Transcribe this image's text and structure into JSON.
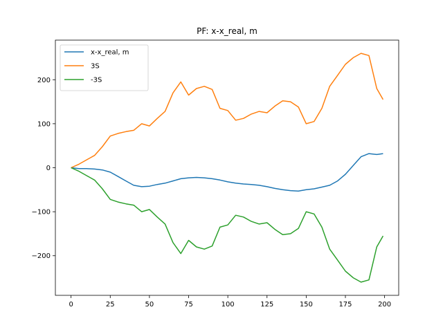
{
  "chart_data": {
    "type": "line",
    "title": "PF: x-x_real, m",
    "xlabel": "",
    "ylabel": "",
    "xlim": [
      -10,
      209
    ],
    "ylim": [
      -290,
      290
    ],
    "xticks": [
      0,
      25,
      50,
      75,
      100,
      125,
      150,
      175,
      200
    ],
    "yticks": [
      -200,
      -100,
      0,
      100,
      200
    ],
    "xtick_labels": [
      "0",
      "25",
      "50",
      "75",
      "100",
      "125",
      "150",
      "175",
      "200"
    ],
    "ytick_labels": [
      "−200",
      "−100",
      "0",
      "100",
      "200"
    ],
    "grid": false,
    "legend_position": "upper-left",
    "series": [
      {
        "name": "x-x_real, m",
        "color": "#1f77b4",
        "x": [
          0,
          5,
          10,
          15,
          20,
          25,
          30,
          35,
          40,
          45,
          50,
          55,
          60,
          65,
          70,
          75,
          80,
          85,
          90,
          95,
          100,
          105,
          110,
          115,
          120,
          125,
          130,
          135,
          140,
          145,
          150,
          155,
          160,
          165,
          170,
          175,
          180,
          185,
          190,
          195,
          199
        ],
        "y": [
          0,
          -2,
          -2,
          -3,
          -5,
          -10,
          -20,
          -30,
          -40,
          -43,
          -42,
          -38,
          -35,
          -30,
          -25,
          -23,
          -22,
          -23,
          -25,
          -28,
          -32,
          -35,
          -37,
          -38,
          -40,
          -43,
          -47,
          -50,
          -52,
          -53,
          -50,
          -48,
          -44,
          -40,
          -30,
          -15,
          5,
          25,
          32,
          30,
          32
        ]
      },
      {
        "name": "3S",
        "color": "#ff7f0e",
        "x": [
          0,
          5,
          10,
          15,
          20,
          25,
          30,
          35,
          40,
          45,
          50,
          55,
          60,
          65,
          70,
          75,
          80,
          85,
          90,
          95,
          100,
          105,
          110,
          115,
          120,
          125,
          130,
          135,
          140,
          145,
          150,
          155,
          160,
          165,
          170,
          175,
          180,
          185,
          190,
          195,
          199
        ],
        "y": [
          0,
          8,
          18,
          28,
          48,
          72,
          78,
          82,
          85,
          100,
          95,
          112,
          128,
          170,
          195,
          165,
          180,
          185,
          178,
          135,
          130,
          108,
          112,
          122,
          128,
          125,
          140,
          152,
          150,
          138,
          100,
          105,
          135,
          185,
          210,
          235,
          250,
          260,
          255,
          180,
          155
        ]
      },
      {
        "name": "-3S",
        "color": "#2ca02c",
        "x": [
          0,
          5,
          10,
          15,
          20,
          25,
          30,
          35,
          40,
          45,
          50,
          55,
          60,
          65,
          70,
          75,
          80,
          85,
          90,
          95,
          100,
          105,
          110,
          115,
          120,
          125,
          130,
          135,
          140,
          145,
          150,
          155,
          160,
          165,
          170,
          175,
          180,
          185,
          190,
          195,
          199
        ],
        "y": [
          0,
          -8,
          -18,
          -28,
          -48,
          -72,
          -78,
          -82,
          -85,
          -100,
          -95,
          -112,
          -128,
          -170,
          -195,
          -165,
          -180,
          -185,
          -178,
          -135,
          -130,
          -108,
          -112,
          -122,
          -128,
          -125,
          -140,
          -152,
          -150,
          -138,
          -100,
          -105,
          -135,
          -185,
          -210,
          -235,
          -250,
          -260,
          -255,
          -180,
          -155
        ]
      }
    ]
  }
}
